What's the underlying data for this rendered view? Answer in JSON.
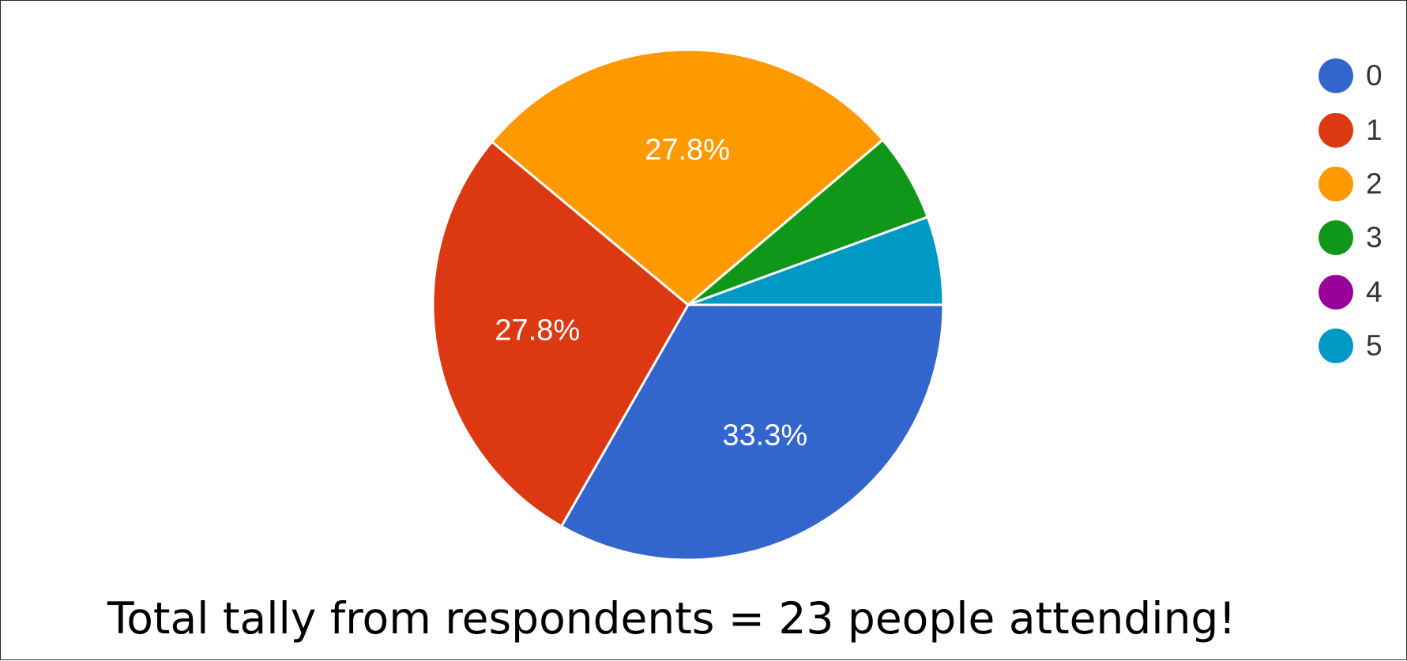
{
  "chart_data": {
    "type": "pie",
    "categories": [
      "0",
      "1",
      "2",
      "3",
      "4",
      "5"
    ],
    "values": [
      33.3,
      27.8,
      27.8,
      5.6,
      0,
      5.6
    ],
    "data_labels": [
      "33.3%",
      "27.8%",
      "27.8%",
      "",
      "",
      ""
    ],
    "colors": [
      "#3366cc",
      "#dc3912",
      "#ff9900",
      "#109618",
      "#990099",
      "#0099c6"
    ],
    "legend_position": "right"
  },
  "footer": {
    "text": "Total tally from respondents = 23 people attending!"
  }
}
